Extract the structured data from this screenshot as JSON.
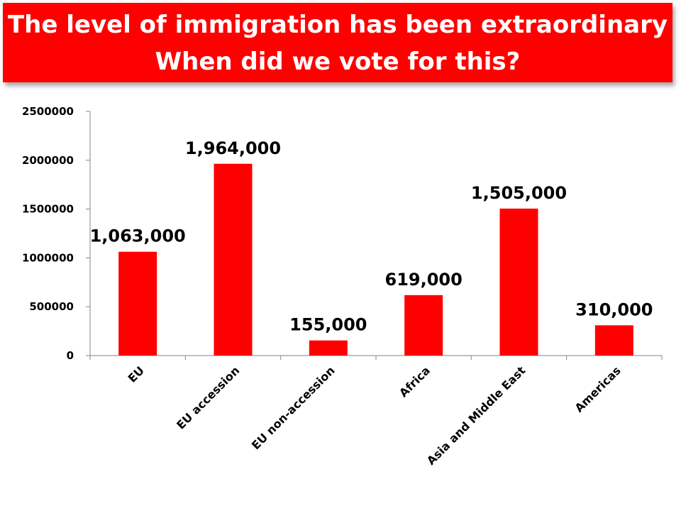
{
  "header": {
    "title_line1": "The level of immigration has been extraordinary",
    "title_line2": "When did we vote for this?"
  },
  "colors": {
    "banner": "#ff0000",
    "bar": "#ff0000",
    "title_text": "#ffffff",
    "axis": "#868686"
  },
  "chart_data": {
    "type": "bar",
    "categories": [
      "EU",
      "EU accession",
      "EU non-accession",
      "Africa",
      "Asia and Middle East",
      "Americas"
    ],
    "values": [
      1063000,
      1964000,
      155000,
      619000,
      1505000,
      310000
    ],
    "data_labels": [
      "1,063,000",
      "1,964,000",
      "155,000",
      "619,000",
      "1,505,000",
      "310,000"
    ],
    "yticks": [
      0,
      500000,
      1000000,
      1500000,
      2000000,
      2500000
    ],
    "ytick_labels": [
      "0",
      "500000",
      "1000000",
      "1500000",
      "2000000",
      "2500000"
    ],
    "ylim": [
      0,
      2500000
    ],
    "title": "",
    "xlabel": "",
    "ylabel": "",
    "grid": false,
    "legend": "none"
  }
}
